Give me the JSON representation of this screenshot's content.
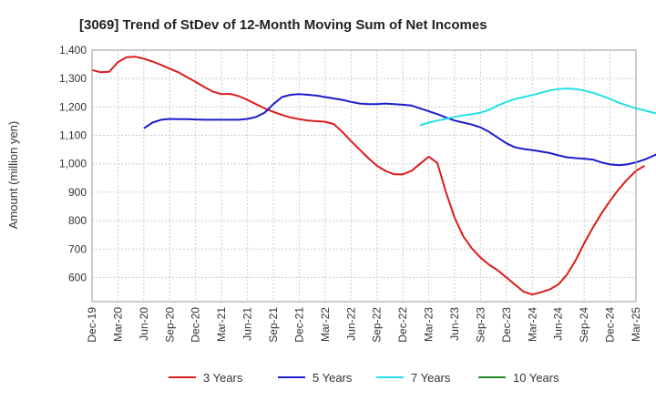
{
  "chart_data": {
    "type": "line",
    "title": "[3069]  Trend of StDev of 12-Month Moving Sum of Net Incomes",
    "ylabel": "Amount (million yen)",
    "xlabel": "",
    "ylim": [
      515,
      1400
    ],
    "y_ticks": [
      600,
      700,
      800,
      900,
      "1,000",
      "1,100",
      "1,200",
      "1,300",
      "1,400"
    ],
    "y_tick_values": [
      600,
      700,
      800,
      900,
      1000,
      1100,
      1200,
      1300,
      1400
    ],
    "x_ticks": [
      "Dec-19",
      "Mar-20",
      "Jun-20",
      "Sep-20",
      "Dec-20",
      "Mar-21",
      "Jun-21",
      "Sep-21",
      "Dec-21",
      "Mar-22",
      "Jun-22",
      "Sep-22",
      "Dec-22",
      "Mar-23",
      "Jun-23",
      "Sep-23",
      "Dec-23",
      "Mar-24",
      "Jun-24",
      "Sep-24",
      "Dec-24",
      "Mar-25"
    ],
    "grid": true,
    "legend_position": "bottom",
    "series": [
      {
        "name": "3 Years",
        "color": "#dd1c1c",
        "values": [
          1330,
          1322,
          1324,
          1358,
          1375,
          1377,
          1370,
          1360,
          1348,
          1335,
          1322,
          1305,
          1288,
          1270,
          1254,
          1245,
          1246,
          1238,
          1225,
          1210,
          1195,
          1183,
          1172,
          1163,
          1157,
          1152,
          1150,
          1148,
          1140,
          1112,
          1080,
          1050,
          1020,
          993,
          975,
          963,
          963,
          975,
          1000,
          1025,
          1003,
          900,
          810,
          745,
          702,
          670,
          645,
          625,
          600,
          575,
          550,
          540,
          548,
          558,
          575,
          610,
          660,
          720,
          775,
          825,
          870,
          910,
          945,
          975,
          993
        ]
      },
      {
        "name": "5 Years",
        "color": "#1c1ccc",
        "values": [
          null,
          null,
          null,
          null,
          null,
          null,
          1125,
          1145,
          1155,
          1158,
          1157,
          1157,
          1156,
          1155,
          1155,
          1155,
          1155,
          1155,
          1158,
          1165,
          1180,
          1210,
          1235,
          1243,
          1245,
          1243,
          1240,
          1235,
          1230,
          1225,
          1218,
          1212,
          1210,
          1210,
          1212,
          1210,
          1208,
          1205,
          1195,
          1185,
          1175,
          1163,
          1152,
          1145,
          1138,
          1128,
          1112,
          1092,
          1072,
          1058,
          1052,
          1048,
          1043,
          1038,
          1030,
          1023,
          1020,
          1018,
          1015,
          1005,
          998,
          995,
          998,
          1005,
          1015,
          1028,
          1042,
          1055,
          1070
        ]
      },
      {
        "name": "7 Years",
        "color": "#22e0e8",
        "values": [
          null,
          null,
          null,
          null,
          null,
          null,
          null,
          null,
          null,
          null,
          null,
          null,
          null,
          null,
          null,
          null,
          null,
          null,
          null,
          null,
          null,
          null,
          null,
          null,
          null,
          null,
          null,
          null,
          null,
          null,
          null,
          null,
          null,
          null,
          null,
          null,
          null,
          null,
          1135,
          1145,
          1152,
          1158,
          1165,
          1170,
          1175,
          1180,
          1190,
          1205,
          1218,
          1228,
          1235,
          1242,
          1250,
          1258,
          1263,
          1265,
          1263,
          1258,
          1250,
          1240,
          1228,
          1215,
          1205,
          1195,
          1188,
          1180,
          1175,
          1168,
          1160,
          1145
        ]
      },
      {
        "name": "10 Years",
        "color": "#228822",
        "values": []
      }
    ]
  }
}
